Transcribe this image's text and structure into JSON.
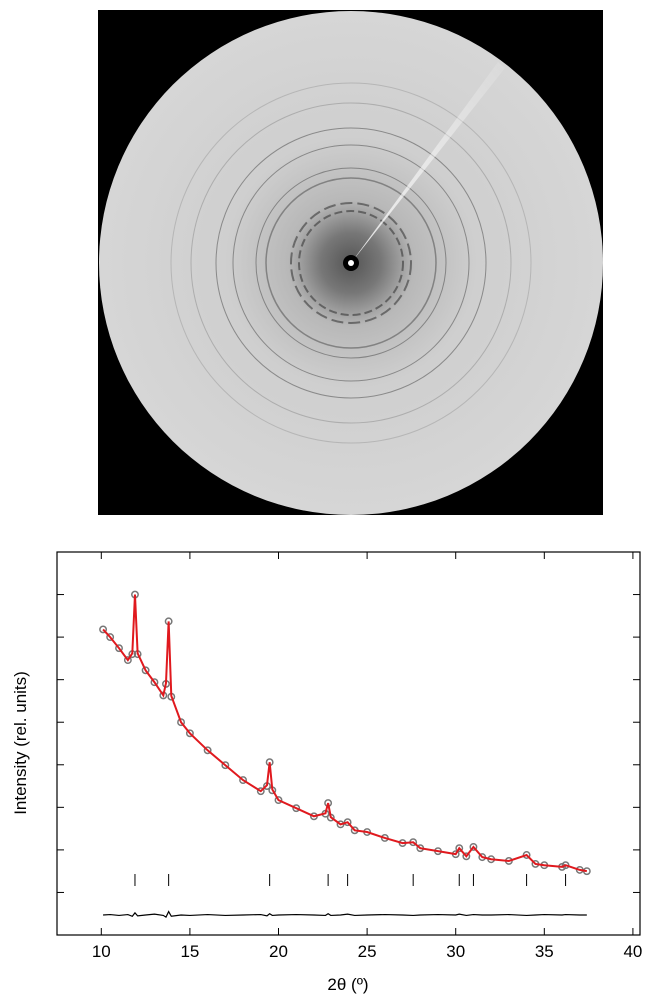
{
  "chart_data": {
    "type": "line",
    "xlabel": "2θ (º)",
    "ylabel": "Intensity (rel. units)",
    "x": [
      10.1,
      10.5,
      11,
      11.5,
      11.75,
      11.9,
      12.05,
      12.5,
      13,
      13.5,
      13.65,
      13.8,
      13.95,
      14.5,
      15,
      16,
      17,
      18,
      19,
      19.35,
      19.5,
      19.65,
      20,
      21,
      22,
      22.65,
      22.8,
      22.95,
      23.5,
      23.9,
      24.3,
      25,
      26,
      27,
      27.6,
      28,
      29,
      30,
      30.2,
      30.6,
      31,
      31.5,
      32,
      33,
      34,
      34.5,
      35,
      36,
      36.2,
      37,
      37.4
    ],
    "series": [
      {
        "color": "#777777",
        "values": [
          7.18,
          7.0,
          6.74,
          6.46,
          6.6,
          8.0,
          6.6,
          6.22,
          5.94,
          5.63,
          5.9,
          7.37,
          5.6,
          5.0,
          4.74,
          4.34,
          3.99,
          3.64,
          3.38,
          3.5,
          4.06,
          3.4,
          3.17,
          2.98,
          2.79,
          2.85,
          3.1,
          2.76,
          2.6,
          2.65,
          2.46,
          2.42,
          2.28,
          2.16,
          2.18,
          2.04,
          1.97,
          1.9,
          2.04,
          1.85,
          2.07,
          1.83,
          1.78,
          1.74,
          1.88,
          1.67,
          1.64,
          1.6,
          1.64,
          1.53,
          1.5
        ]
      },
      {
        "color": "#e0191e",
        "values": [
          7.18,
          7.0,
          6.74,
          6.46,
          6.62,
          8.0,
          6.62,
          6.22,
          5.94,
          5.63,
          5.92,
          7.37,
          5.62,
          5.0,
          4.74,
          4.34,
          3.99,
          3.64,
          3.38,
          3.52,
          4.06,
          3.42,
          3.17,
          2.98,
          2.79,
          2.86,
          3.1,
          2.77,
          2.6,
          2.65,
          2.46,
          2.42,
          2.28,
          2.16,
          2.18,
          2.04,
          1.97,
          1.9,
          2.04,
          1.85,
          2.07,
          1.83,
          1.78,
          1.74,
          1.88,
          1.67,
          1.64,
          1.6,
          1.64,
          1.53,
          1.5
        ]
      },
      {
        "color": "#000000",
        "values": [
          0.47,
          0.48,
          0.46,
          0.48,
          0.44,
          0.52,
          0.45,
          0.47,
          0.49,
          0.46,
          0.42,
          0.55,
          0.44,
          0.47,
          0.46,
          0.48,
          0.46,
          0.47,
          0.48,
          0.45,
          0.5,
          0.46,
          0.47,
          0.48,
          0.47,
          0.46,
          0.5,
          0.46,
          0.47,
          0.49,
          0.46,
          0.47,
          0.48,
          0.47,
          0.46,
          0.47,
          0.48,
          0.47,
          0.49,
          0.46,
          0.48,
          0.47,
          0.47,
          0.48,
          0.46,
          0.47,
          0.48,
          0.47,
          0.48,
          0.47,
          0.47
        ]
      }
    ],
    "bragg_positions": [
      11.9,
      13.8,
      19.5,
      22.8,
      23.9,
      27.6,
      30.2,
      31.0,
      34.0,
      36.2
    ],
    "xlim": [
      7.5,
      40.4
    ],
    "xticks": [
      10,
      15,
      20,
      25,
      30,
      35,
      40
    ],
    "ylim": [
      0,
      9
    ],
    "yticks": [
      1,
      2,
      3,
      4,
      5,
      6,
      7,
      8
    ]
  }
}
